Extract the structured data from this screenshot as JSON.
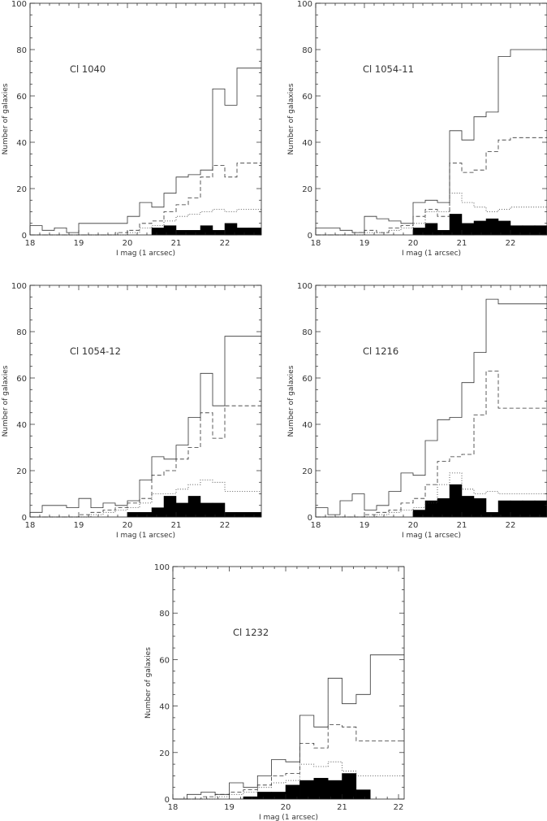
{
  "chart_data": [
    {
      "type": "histogram",
      "panel_label": "Cl 1040",
      "xlabel": "I mag (1 arcsec)",
      "ylabel": "Number of galaxies",
      "xlim": [
        18,
        22.75
      ],
      "ylim": [
        0,
        100
      ],
      "xticks": [
        18,
        19,
        20,
        21,
        22
      ],
      "yticks": [
        0,
        20,
        40,
        60,
        80,
        100
      ],
      "bin_edges": [
        18,
        18.25,
        18.5,
        18.75,
        19,
        19.25,
        19.5,
        19.75,
        20,
        20.25,
        20.5,
        20.75,
        21,
        21.25,
        21.5,
        21.75,
        22,
        22.25,
        22.5,
        22.75
      ],
      "series": [
        {
          "style": "solid",
          "values": [
            4,
            2,
            3,
            1,
            5,
            5,
            5,
            5,
            8,
            14,
            12,
            18,
            25,
            26,
            28,
            63,
            56,
            72,
            72
          ]
        },
        {
          "style": "dashed",
          "values": [
            0,
            0,
            0,
            0,
            0,
            0,
            0,
            1,
            2,
            5,
            6,
            10,
            13,
            16,
            25,
            30,
            25,
            31,
            31
          ]
        },
        {
          "style": "dotted",
          "values": [
            0,
            0,
            0,
            0,
            0,
            0,
            0,
            0,
            1,
            3,
            4,
            6,
            8,
            9,
            10,
            11,
            10,
            11,
            11
          ]
        },
        {
          "style": "filled",
          "values": [
            0,
            0,
            0,
            0,
            0,
            0,
            0,
            0,
            0,
            0,
            3,
            4,
            2,
            2,
            4,
            2,
            5,
            3,
            3
          ]
        }
      ]
    },
    {
      "type": "histogram",
      "panel_label": "Cl 1054-11",
      "xlabel": "I mag (1 arcsec)",
      "ylabel": "Number of galaxies",
      "xlim": [
        18,
        22.75
      ],
      "ylim": [
        0,
        100
      ],
      "xticks": [
        18,
        19,
        20,
        21,
        22
      ],
      "yticks": [
        0,
        20,
        40,
        60,
        80,
        100
      ],
      "bin_edges": [
        18,
        18.25,
        18.5,
        18.75,
        19,
        19.25,
        19.5,
        19.75,
        20,
        20.25,
        20.5,
        20.75,
        21,
        21.25,
        21.5,
        21.75,
        22,
        22.25,
        22.5,
        22.75
      ],
      "series": [
        {
          "style": "solid",
          "values": [
            3,
            3,
            2,
            1,
            8,
            7,
            6,
            5,
            14,
            15,
            14,
            45,
            41,
            51,
            53,
            77,
            80,
            80,
            80
          ]
        },
        {
          "style": "dashed",
          "values": [
            0,
            0,
            0,
            1,
            2,
            1,
            3,
            4,
            8,
            11,
            8,
            31,
            27,
            28,
            36,
            41,
            42,
            42,
            42
          ]
        },
        {
          "style": "dotted",
          "values": [
            0,
            0,
            0,
            0,
            1,
            1,
            2,
            3,
            5,
            10,
            10,
            18,
            14,
            12,
            10,
            11,
            12,
            12,
            12
          ]
        },
        {
          "style": "filled",
          "values": [
            0,
            0,
            0,
            0,
            0,
            0,
            0,
            0,
            3,
            5,
            2,
            9,
            5,
            6,
            7,
            6,
            4,
            4,
            4
          ]
        }
      ]
    },
    {
      "type": "histogram",
      "panel_label": "Cl 1054-12",
      "xlabel": "I mag (1 arcsec)",
      "ylabel": "Number of galaxies",
      "xlim": [
        18,
        22.75
      ],
      "ylim": [
        0,
        100
      ],
      "xticks": [
        18,
        19,
        20,
        21,
        22
      ],
      "yticks": [
        0,
        20,
        40,
        60,
        80,
        100
      ],
      "bin_edges": [
        18,
        18.25,
        18.5,
        18.75,
        19,
        19.25,
        19.5,
        19.75,
        20,
        20.25,
        20.5,
        20.75,
        21,
        21.25,
        21.5,
        21.75,
        22,
        22.25,
        22.5,
        22.75
      ],
      "series": [
        {
          "style": "solid",
          "values": [
            2,
            5,
            5,
            4,
            8,
            4,
            6,
            5,
            7,
            16,
            26,
            25,
            31,
            43,
            62,
            48,
            78,
            78,
            78
          ]
        },
        {
          "style": "dashed",
          "values": [
            0,
            0,
            0,
            0,
            1,
            2,
            3,
            4,
            6,
            8,
            18,
            20,
            25,
            30,
            45,
            34,
            48,
            48,
            48
          ]
        },
        {
          "style": "dotted",
          "values": [
            0,
            0,
            0,
            0,
            0,
            1,
            2,
            3,
            4,
            6,
            10,
            10,
            12,
            14,
            16,
            15,
            11,
            11,
            11
          ]
        },
        {
          "style": "filled",
          "values": [
            0,
            0,
            0,
            0,
            0,
            0,
            0,
            0,
            2,
            2,
            4,
            9,
            6,
            9,
            6,
            6,
            2,
            2,
            2
          ]
        }
      ]
    },
    {
      "type": "histogram",
      "panel_label": "Cl 1216",
      "xlabel": "I mag (1 arcsec)",
      "ylabel": "Number of galaxies",
      "xlim": [
        18,
        22.75
      ],
      "ylim": [
        0,
        100
      ],
      "xticks": [
        18,
        19,
        20,
        21,
        22
      ],
      "yticks": [
        0,
        20,
        40,
        60,
        80,
        100
      ],
      "bin_edges": [
        18,
        18.25,
        18.5,
        18.75,
        19,
        19.25,
        19.5,
        19.75,
        20,
        20.25,
        20.5,
        20.75,
        21,
        21.25,
        21.5,
        21.75,
        22,
        22.25,
        22.5,
        22.75
      ],
      "series": [
        {
          "style": "solid",
          "values": [
            4,
            1,
            7,
            10,
            3,
            5,
            11,
            19,
            18,
            33,
            42,
            43,
            58,
            71,
            94,
            92,
            92,
            92,
            92
          ]
        },
        {
          "style": "dashed",
          "values": [
            0,
            0,
            0,
            0,
            1,
            2,
            3,
            6,
            8,
            14,
            24,
            26,
            27,
            44,
            63,
            47,
            47,
            47,
            47
          ]
        },
        {
          "style": "dotted",
          "values": [
            0,
            0,
            0,
            0,
            0,
            1,
            2,
            3,
            4,
            6,
            14,
            19,
            12,
            10,
            11,
            10,
            10,
            10,
            10
          ]
        },
        {
          "style": "filled",
          "values": [
            0,
            0,
            0,
            0,
            0,
            0,
            0,
            0,
            3,
            7,
            8,
            14,
            9,
            8,
            2,
            7,
            7,
            7,
            7
          ]
        }
      ]
    },
    {
      "type": "histogram",
      "panel_label": "Cl 1232",
      "xlabel": "I mag (1 arcsec)",
      "ylabel": "Number of galaxies",
      "xlim": [
        18,
        22.1
      ],
      "ylim": [
        0,
        100
      ],
      "xticks": [
        18,
        19,
        20,
        21,
        22
      ],
      "yticks": [
        0,
        20,
        40,
        60,
        80,
        100
      ],
      "bin_edges": [
        18,
        18.25,
        18.5,
        18.75,
        19,
        19.25,
        19.5,
        19.75,
        20,
        20.25,
        20.5,
        20.75,
        21,
        21.25,
        21.5,
        21.75,
        22,
        22.1
      ],
      "series": [
        {
          "style": "solid",
          "values": [
            0,
            2,
            3,
            2,
            7,
            5,
            10,
            17,
            16,
            36,
            31,
            52,
            41,
            45,
            62,
            62,
            62
          ]
        },
        {
          "style": "dashed",
          "values": [
            0,
            0,
            1,
            2,
            3,
            4,
            6,
            10,
            11,
            24,
            22,
            32,
            31,
            25,
            25,
            25,
            25
          ]
        },
        {
          "style": "dotted",
          "values": [
            0,
            0,
            0,
            1,
            2,
            3,
            5,
            7,
            8,
            15,
            14,
            16,
            12,
            10,
            10,
            10,
            10
          ]
        },
        {
          "style": "filled",
          "values": [
            0,
            0,
            0,
            0,
            0,
            1,
            3,
            3,
            6,
            8,
            9,
            8,
            11,
            4,
            0,
            0,
            0
          ]
        }
      ]
    }
  ]
}
